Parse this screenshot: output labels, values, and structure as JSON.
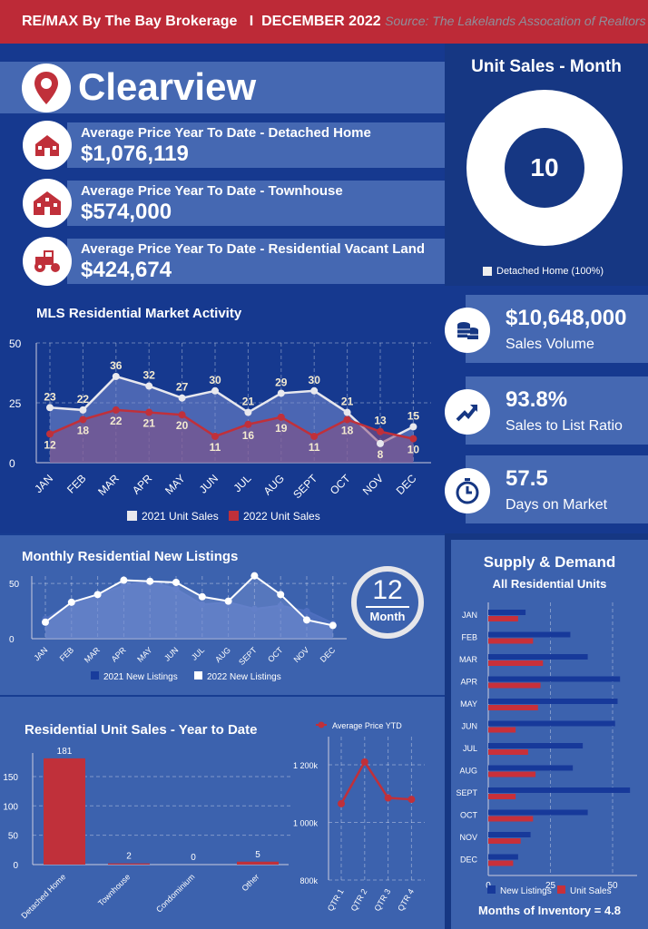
{
  "header": {
    "brokerage": "RE/MAX By The Bay Brokerage",
    "separator": "I",
    "period": "DECEMBER 2022",
    "source": "Source: The Lakelands Assocation of Realtors"
  },
  "city": {
    "name": "Clearview",
    "icon": "map-pin-icon"
  },
  "averages": [
    {
      "label": "Average Price Year To Date - Detached Home",
      "value": "$1,076,119",
      "icon": "house-icon"
    },
    {
      "label": "Average Price Year To Date - Townhouse",
      "value": "$574,000",
      "icon": "townhouse-icon"
    },
    {
      "label": "Average Price Year To Date - Residential Vacant Land",
      "value": "$424,674",
      "icon": "tractor-icon"
    }
  ],
  "unit_sales_month": {
    "title": "Unit Sales - Month",
    "value": "10",
    "legend": "Detached Home (100%)"
  },
  "stats": [
    {
      "value": "$10,648,000",
      "label": "Sales Volume",
      "icon": "coins-icon"
    },
    {
      "value": "93.8%",
      "label": "Sales to List Ratio",
      "icon": "trend-up-icon"
    },
    {
      "value": "57.5",
      "label": "Days on Market",
      "icon": "stopwatch-icon"
    }
  ],
  "twelve_month": {
    "number": "12",
    "label": "Month"
  },
  "colors": {
    "red": "#c0303a",
    "white": "#ffffff",
    "navy": "#16398f"
  },
  "chart_data": [
    {
      "id": "mls",
      "type": "line",
      "title": "MLS Residential Market Activity",
      "categories": [
        "JAN",
        "FEB",
        "MAR",
        "APR",
        "MAY",
        "JUN",
        "JUL",
        "AUG",
        "SEPT",
        "OCT",
        "NOV",
        "DEC"
      ],
      "ylim": [
        0,
        50
      ],
      "yticks": [
        0,
        25,
        50
      ],
      "series": [
        {
          "name": "2021 Unit Sales",
          "values": [
            23,
            22,
            36,
            32,
            27,
            30,
            21,
            29,
            30,
            21,
            8,
            15
          ]
        },
        {
          "name": "2022 Unit Sales",
          "values": [
            12,
            18,
            22,
            21,
            20,
            11,
            16,
            19,
            11,
            18,
            13,
            10
          ]
        }
      ]
    },
    {
      "id": "listings",
      "type": "line",
      "title": "Monthly Residential New Listings",
      "categories": [
        "JAN",
        "FEB",
        "MAR",
        "APR",
        "MAY",
        "JUN",
        "JUL",
        "AUG",
        "SEPT",
        "OCT",
        "NOV",
        "DEC"
      ],
      "ylim": [
        0,
        60
      ],
      "yticks": [
        0,
        50
      ],
      "series": [
        {
          "name": "2021 New Listings",
          "values": [
            18,
            32,
            40,
            48,
            52,
            45,
            31,
            33,
            27,
            30,
            25,
            14
          ]
        },
        {
          "name": "2022 New Listings",
          "values": [
            15,
            33,
            40,
            53,
            52,
            51,
            38,
            34,
            57,
            40,
            17,
            12
          ]
        }
      ]
    },
    {
      "id": "supply",
      "type": "bar",
      "title": "Supply & Demand",
      "subtitle": "All Residential Units",
      "categories": [
        "JAN",
        "FEB",
        "MAR",
        "APR",
        "MAY",
        "JUN",
        "JUL",
        "AUG",
        "SEPT",
        "OCT",
        "NOV",
        "DEC"
      ],
      "xlim": [
        0,
        60
      ],
      "xticks": [
        0,
        25,
        50
      ],
      "series": [
        {
          "name": "New Listings",
          "values": [
            15,
            33,
            40,
            53,
            52,
            51,
            38,
            34,
            57,
            40,
            17,
            12
          ]
        },
        {
          "name": "Unit Sales",
          "values": [
            12,
            18,
            22,
            21,
            20,
            11,
            16,
            19,
            11,
            18,
            13,
            10
          ]
        }
      ],
      "footer": "Months of Inventory = 4.8"
    },
    {
      "id": "ytd",
      "type": "bar",
      "title": "Residential Unit Sales - Year to Date",
      "categories": [
        "Detached Home",
        "Townhouse",
        "Condominium",
        "Other"
      ],
      "values": [
        181,
        2,
        0,
        5
      ],
      "ylim": [
        0,
        190
      ],
      "yticks": [
        0,
        50,
        100,
        150
      ]
    },
    {
      "id": "price",
      "type": "line",
      "legend": "Average Price YTD",
      "categories": [
        "QTR 1",
        "QTR 2",
        "QTR 3",
        "QTR 4"
      ],
      "values": [
        1065,
        1210,
        1085,
        1080
      ],
      "ylim": [
        800,
        1260
      ],
      "yticks": [
        800,
        1000,
        1200
      ],
      "tick_labels": [
        "800k",
        "1 000k",
        "1 200k"
      ]
    }
  ]
}
